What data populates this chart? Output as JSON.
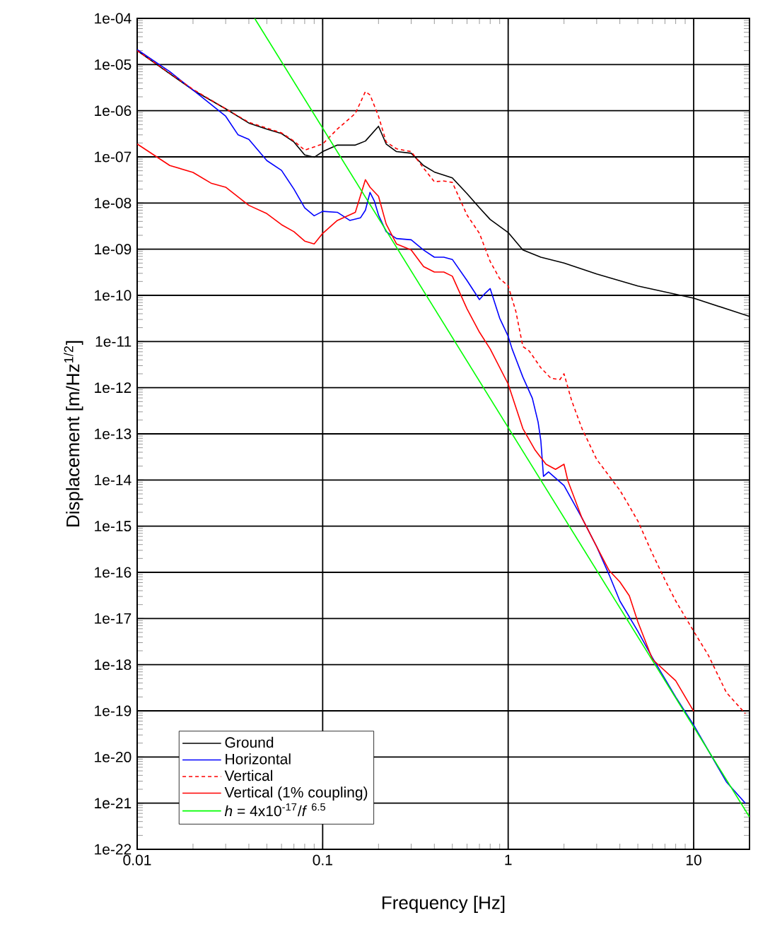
{
  "chart_data": {
    "type": "line",
    "xlabel": "Frequency [Hz]",
    "ylabel": "Displacement [m/Hz$^{1/2}$]",
    "log": "xy",
    "xlim": [
      0.01,
      20
    ],
    "ylim": [
      1e-22,
      0.0001
    ],
    "xticks": [
      0.01,
      0.1,
      1,
      10
    ],
    "yticks": [
      {
        "value": 1e-22,
        "label": "1e-22"
      },
      {
        "value": 1e-21,
        "label": "1e-21"
      },
      {
        "value": 1e-20,
        "label": "1e-20"
      },
      {
        "value": 1e-19,
        "label": "1e-19"
      },
      {
        "value": 1e-18,
        "label": "1e-18"
      },
      {
        "value": 1e-17,
        "label": "1e-17"
      },
      {
        "value": 1e-16,
        "label": "1e-16"
      },
      {
        "value": 1e-15,
        "label": "1e-15"
      },
      {
        "value": 1e-14,
        "label": "1e-14"
      },
      {
        "value": 1e-13,
        "label": "1e-13"
      },
      {
        "value": 1e-12,
        "label": "1e-12"
      },
      {
        "value": 1e-11,
        "label": "1e-11"
      },
      {
        "value": 1e-10,
        "label": "1e-10"
      },
      {
        "value": 1e-09,
        "label": "1e-09"
      },
      {
        "value": 1e-08,
        "label": "1e-08"
      },
      {
        "value": 1e-07,
        "label": "1e-07"
      },
      {
        "value": 1e-06,
        "label": "1e-06"
      },
      {
        "value": 1e-05,
        "label": "1e-05"
      },
      {
        "value": 0.0001,
        "label": "1e-04"
      }
    ],
    "grid": true,
    "legend": "bottom left",
    "series": [
      {
        "name": "Ground",
        "color": "#000000",
        "line_style": "solid",
        "x": [
          0.01,
          0.015,
          0.02,
          0.03,
          0.04,
          0.05,
          0.06,
          0.07,
          0.08,
          0.09,
          0.1,
          0.12,
          0.15,
          0.17,
          0.2,
          0.22,
          0.25,
          0.3,
          0.35,
          0.4,
          0.5,
          0.6,
          0.7,
          0.8,
          1,
          1.2,
          1.5,
          2,
          3,
          5,
          10,
          20
        ],
        "values": [
          2e-05,
          6.3e-06,
          2.8e-06,
          1.1e-06,
          5.4e-07,
          4e-07,
          3.2e-07,
          2.1e-07,
          1.1e-07,
          9.8e-08,
          1.3e-07,
          1.8e-07,
          1.8e-07,
          2.2e-07,
          4.6e-07,
          1.9e-07,
          1.3e-07,
          1.2e-07,
          6.5e-08,
          4.7e-08,
          3.5e-08,
          1.6e-08,
          7.9e-09,
          4.4e-09,
          2.3e-09,
          9.6e-10,
          6.7e-10,
          5e-10,
          2.9e-10,
          1.6e-10,
          8.7e-11,
          3.5e-11
        ]
      },
      {
        "name": "Horizontal",
        "color": "#0000ff",
        "line_style": "solid",
        "x": [
          0.01,
          0.015,
          0.02,
          0.03,
          0.035,
          0.04,
          0.05,
          0.06,
          0.07,
          0.08,
          0.09,
          0.1,
          0.12,
          0.14,
          0.16,
          0.17,
          0.18,
          0.19,
          0.2,
          0.22,
          0.25,
          0.3,
          0.35,
          0.4,
          0.45,
          0.5,
          0.6,
          0.7,
          0.75,
          0.8,
          0.9,
          1,
          1.05,
          1.2,
          1.35,
          1.45,
          1.5,
          1.55,
          1.65,
          2,
          2.5,
          3,
          3.5,
          4,
          5,
          6,
          8,
          10,
          15,
          19
        ],
        "values": [
          2.1e-05,
          7e-06,
          2.8e-06,
          7.6e-07,
          3e-07,
          2.4e-07,
          8.3e-08,
          5.1e-08,
          2e-08,
          7.9e-09,
          5.3e-09,
          6.6e-09,
          6.3e-09,
          4.2e-09,
          4.8e-09,
          7e-09,
          1.7e-08,
          1.1e-08,
          5.5e-09,
          2.4e-09,
          1.7e-09,
          1.6e-09,
          9.6e-10,
          6.7e-10,
          6.7e-10,
          6e-10,
          2.1e-10,
          8.1e-11,
          1.1e-10,
          1.4e-10,
          3.2e-11,
          1.3e-11,
          6.9e-12,
          1.7e-12,
          5.9e-13,
          1.8e-13,
          7.1e-14,
          1.2e-14,
          1.5e-14,
          7.6e-15,
          1.5e-15,
          3.6e-16,
          8.9e-17,
          2.4e-17,
          5.3e-18,
          1.4e-18,
          2e-19,
          4.9e-20,
          2.9e-21,
          1e-21
        ]
      },
      {
        "name": "Vertical",
        "color": "#ff0000",
        "line_style": "dashed",
        "x": [
          0.01,
          0.015,
          0.02,
          0.03,
          0.04,
          0.05,
          0.06,
          0.07,
          0.08,
          0.1,
          0.12,
          0.15,
          0.17,
          0.18,
          0.2,
          0.22,
          0.25,
          0.3,
          0.35,
          0.4,
          0.45,
          0.5,
          0.6,
          0.7,
          0.8,
          0.9,
          1,
          1.1,
          1.2,
          1.3,
          1.5,
          1.7,
          1.9,
          2,
          2.2,
          2.5,
          3,
          4,
          4.5,
          5,
          6,
          7,
          8,
          10,
          12,
          15,
          19
        ],
        "values": [
          2e-05,
          6.5e-06,
          2.9e-06,
          1.1e-06,
          5.6e-07,
          4.2e-07,
          3.3e-07,
          2.2e-07,
          1.4e-07,
          1.9e-07,
          4e-07,
          8.7e-07,
          2.6e-06,
          2.2e-06,
          7.6e-07,
          2.1e-07,
          1.5e-07,
          1.3e-07,
          5.7e-08,
          2.9e-08,
          3e-08,
          2.8e-08,
          5.5e-09,
          2.2e-09,
          5.4e-10,
          2.3e-10,
          1.6e-10,
          4.5e-11,
          7.8e-12,
          6.2e-12,
          2.7e-12,
          1.6e-12,
          1.5e-12,
          2e-12,
          5.2e-13,
          1.3e-13,
          2.8e-14,
          6e-15,
          2.7e-15,
          1.3e-15,
          2.5e-16,
          6.9e-17,
          2.4e-17,
          5.3e-18,
          1.6e-18,
          2.5e-19,
          8.7e-20
        ]
      },
      {
        "name": "Vertical (1% coupling)",
        "color": "#ff0000",
        "line_style": "solid",
        "x": [
          0.01,
          0.015,
          0.02,
          0.025,
          0.03,
          0.04,
          0.05,
          0.06,
          0.07,
          0.08,
          0.09,
          0.1,
          0.12,
          0.15,
          0.17,
          0.18,
          0.2,
          0.22,
          0.25,
          0.3,
          0.35,
          0.4,
          0.45,
          0.5,
          0.6,
          0.7,
          0.8,
          1,
          1.2,
          1.4,
          1.6,
          1.8,
          2,
          2.1,
          2.5,
          3,
          3.5,
          4,
          4.5,
          5,
          6,
          8,
          10
        ],
        "values": [
          1.9e-07,
          6.5e-08,
          4.6e-08,
          2.7e-08,
          2.2e-08,
          8.9e-09,
          5.9e-09,
          3.4e-09,
          2.4e-09,
          1.5e-09,
          1.3e-09,
          2.2e-09,
          4.2e-09,
          6.3e-09,
          3.2e-08,
          2.2e-08,
          1.4e-08,
          3.5e-09,
          1.3e-09,
          9.6e-10,
          4.2e-10,
          3.2e-10,
          3.2e-10,
          2.6e-10,
          5.1e-11,
          1.6e-11,
          6.9e-12,
          1.2e-12,
          1.3e-13,
          4.4e-14,
          2.2e-14,
          1.7e-14,
          2.2e-14,
          9.5e-15,
          1.5e-15,
          3.6e-16,
          1.1e-16,
          6.2e-17,
          3.1e-17,
          8.5e-18,
          1.3e-18,
          4.5e-19,
          9.8e-20
        ]
      },
      {
        "name": "*h* = 4x10$^{-17}$/*f* $^{6.5}$",
        "color": "#00ff00",
        "line_style": "solid",
        "x": [
          0.043,
          20
        ],
        "values": [
          0.0001,
          5e-22
        ]
      }
    ]
  }
}
